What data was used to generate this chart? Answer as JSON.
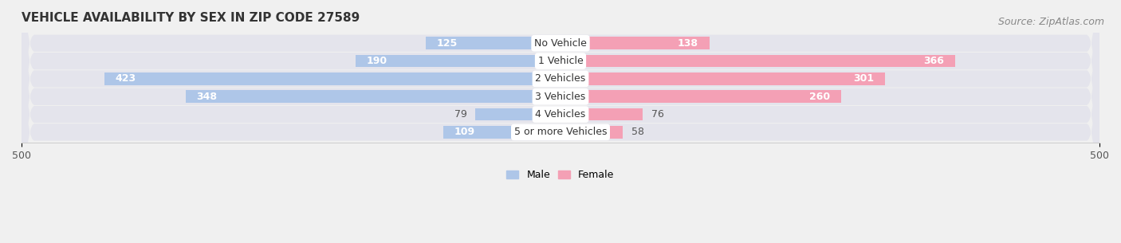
{
  "title": "VEHICLE AVAILABILITY BY SEX IN ZIP CODE 27589",
  "source": "Source: ZipAtlas.com",
  "categories": [
    "No Vehicle",
    "1 Vehicle",
    "2 Vehicles",
    "3 Vehicles",
    "4 Vehicles",
    "5 or more Vehicles"
  ],
  "male_values": [
    125,
    190,
    423,
    348,
    79,
    109
  ],
  "female_values": [
    138,
    366,
    301,
    260,
    76,
    58
  ],
  "male_color": "#aec6e8",
  "female_color": "#f4a0b5",
  "male_label": "Male",
  "female_label": "Female",
  "xlim": [
    -500,
    500
  ],
  "xticks": [
    -500,
    500
  ],
  "background_color": "#f0f0f0",
  "bar_background_color": "#e4e4ec",
  "title_fontsize": 11,
  "source_fontsize": 9,
  "label_fontsize": 9,
  "value_fontsize": 9,
  "category_fontsize": 9,
  "inside_threshold_male": 80,
  "inside_threshold_female": 80
}
